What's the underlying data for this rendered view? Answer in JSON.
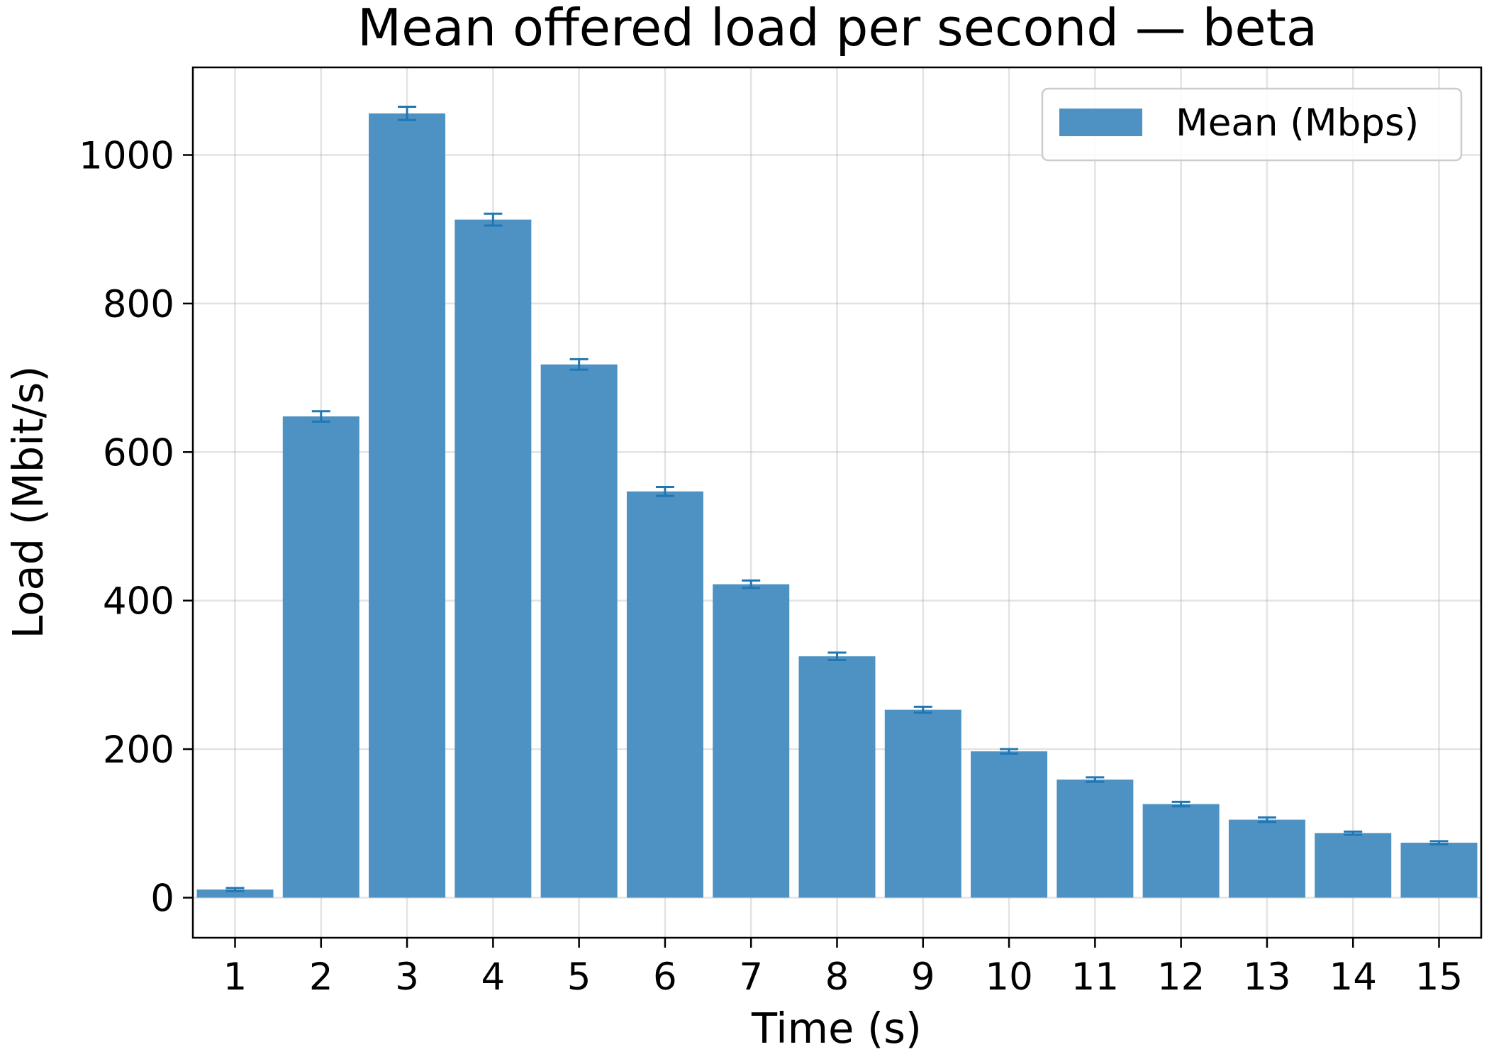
{
  "colors": {
    "bar": "#4d92c3",
    "error_bar": "#1f77b4"
  },
  "chart_data": {
    "type": "bar",
    "title": "Mean offered load per second — beta",
    "xlabel": "Time (s)",
    "ylabel": "Load (Mbit/s)",
    "ylim": [
      -55,
      1115
    ],
    "yticks": [
      0,
      200,
      400,
      600,
      800,
      1000
    ],
    "grid": true,
    "legend_position": "upper right",
    "categories": [
      "1",
      "2",
      "3",
      "4",
      "5",
      "6",
      "7",
      "8",
      "9",
      "10",
      "11",
      "12",
      "13",
      "14",
      "15"
    ],
    "series": [
      {
        "name": "Mean (Mbps)",
        "values": [
          11,
          648,
          1056,
          913,
          718,
          547,
          422,
          325,
          253,
          197,
          159,
          126,
          105,
          87,
          74
        ],
        "error": [
          2,
          7,
          9,
          8,
          7,
          6,
          5,
          5,
          4,
          3,
          3,
          3,
          3,
          2,
          2
        ]
      }
    ]
  }
}
